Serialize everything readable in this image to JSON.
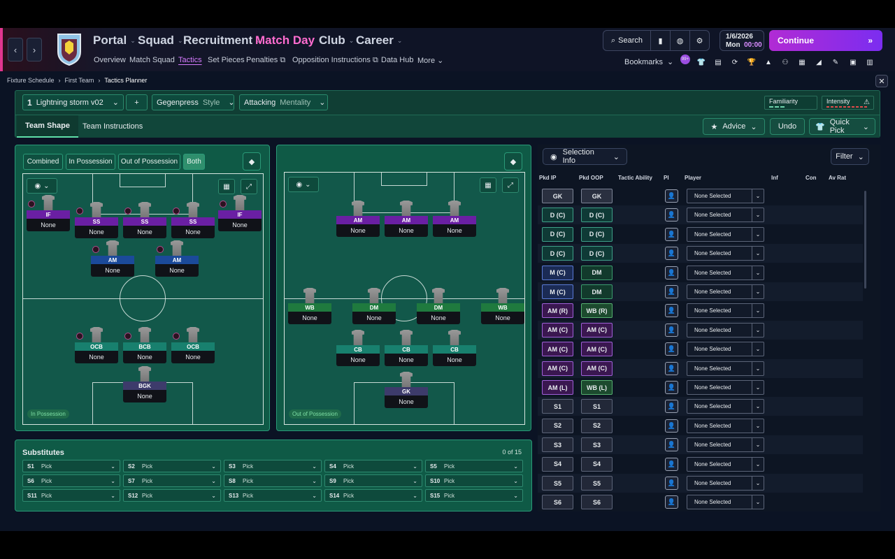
{
  "header": {
    "main_nav": [
      "Portal",
      "Squad",
      "Recruitment",
      "Match Day",
      "Club",
      "Career"
    ],
    "active_main": "Match Day",
    "sub_nav": [
      "Overview",
      "Match Squad",
      "Tactics",
      "Set Pieces",
      "Penalties",
      "Opposition Instructions",
      "Data Hub",
      "More"
    ],
    "active_sub": "Tactics",
    "search_label": "Search",
    "date": "1/6/2026",
    "day": "Mon",
    "time": "00:00",
    "continue_label": "Continue",
    "bookmarks_label": "Bookmarks",
    "bookmark_badge": "99+"
  },
  "breadcrumb": [
    "Fixture Schedule",
    "First Team",
    "Tactics Planner"
  ],
  "tactic": {
    "slot": "1",
    "name": "Lightning storm v02",
    "add_label": "+",
    "style_value": "Gegenpress",
    "style_label": "Style",
    "mentality_value": "Attacking",
    "mentality_label": "Mentality",
    "familiarity_label": "Familiarity",
    "intensity_label": "Intensity"
  },
  "tabs": [
    "Team Shape",
    "Team Instructions"
  ],
  "active_tab": "Team Shape",
  "actions": {
    "advice": "Advice",
    "undo": "Undo",
    "quick_pick": "Quick Pick"
  },
  "view_toggle": [
    "Combined",
    "In Possession",
    "Out of Possession",
    "Both"
  ],
  "active_view": "Both",
  "in_possession": {
    "tag": "In Possession",
    "players": [
      {
        "role": "IF",
        "name": "None",
        "color": "purple"
      },
      {
        "role": "SS",
        "name": "None",
        "color": "purple"
      },
      {
        "role": "SS",
        "name": "None",
        "color": "purple"
      },
      {
        "role": "SS",
        "name": "None",
        "color": "purple"
      },
      {
        "role": "IF",
        "name": "None",
        "color": "purple"
      },
      {
        "role": "AM",
        "name": "None",
        "color": "blue"
      },
      {
        "role": "AM",
        "name": "None",
        "color": "blue"
      },
      {
        "role": "OCB",
        "name": "None",
        "color": "teal"
      },
      {
        "role": "BCB",
        "name": "None",
        "color": "teal"
      },
      {
        "role": "OCB",
        "name": "None",
        "color": "teal"
      },
      {
        "role": "BGK",
        "name": "None",
        "color": "gk"
      }
    ]
  },
  "out_of_possession": {
    "tag": "Out of Possession",
    "players": [
      {
        "role": "AM",
        "name": "None",
        "color": "purple"
      },
      {
        "role": "AM",
        "name": "None",
        "color": "purple"
      },
      {
        "role": "AM",
        "name": "None",
        "color": "purple"
      },
      {
        "role": "WB",
        "name": "None",
        "color": "green"
      },
      {
        "role": "DM",
        "name": "None",
        "color": "green"
      },
      {
        "role": "DM",
        "name": "None",
        "color": "green"
      },
      {
        "role": "WB",
        "name": "None",
        "color": "green"
      },
      {
        "role": "CB",
        "name": "None",
        "color": "teal"
      },
      {
        "role": "CB",
        "name": "None",
        "color": "teal"
      },
      {
        "role": "CB",
        "name": "None",
        "color": "teal"
      },
      {
        "role": "GK",
        "name": "None",
        "color": "gk"
      }
    ]
  },
  "substitutes": {
    "title": "Substitutes",
    "count": "0 of 15",
    "slots": [
      {
        "id": "S1",
        "value": "Pick"
      },
      {
        "id": "S2",
        "value": "Pick"
      },
      {
        "id": "S3",
        "value": "Pick"
      },
      {
        "id": "S4",
        "value": "Pick"
      },
      {
        "id": "S5",
        "value": "Pick"
      },
      {
        "id": "S6",
        "value": "Pick"
      },
      {
        "id": "S7",
        "value": "Pick"
      },
      {
        "id": "S8",
        "value": "Pick"
      },
      {
        "id": "S9",
        "value": "Pick"
      },
      {
        "id": "S10",
        "value": "Pick"
      },
      {
        "id": "S11",
        "value": "Pick"
      },
      {
        "id": "S12",
        "value": "Pick"
      },
      {
        "id": "S13",
        "value": "Pick"
      },
      {
        "id": "S14",
        "value": "Pick"
      },
      {
        "id": "S15",
        "value": "Pick"
      }
    ]
  },
  "selection": {
    "info_label": "Selection Info",
    "filter_label": "Filter",
    "columns": [
      "Pkd IP",
      "Pkd OOP",
      "Tactic Ability",
      "PI",
      "Player",
      "Inf",
      "Con",
      "Av Rat"
    ],
    "rows": [
      {
        "ip": "GK",
        "ip_c": "gk",
        "oop": "GK",
        "oop_c": "gk",
        "player": "None Selected"
      },
      {
        "ip": "D (C)",
        "ip_c": "d",
        "oop": "D (C)",
        "oop_c": "d",
        "player": "None Selected"
      },
      {
        "ip": "D (C)",
        "ip_c": "d",
        "oop": "D (C)",
        "oop_c": "d",
        "player": "None Selected"
      },
      {
        "ip": "D (C)",
        "ip_c": "d",
        "oop": "D (C)",
        "oop_c": "d",
        "player": "None Selected"
      },
      {
        "ip": "M (C)",
        "ip_c": "m",
        "oop": "DM",
        "oop_c": "dm",
        "player": "None Selected"
      },
      {
        "ip": "M (C)",
        "ip_c": "m",
        "oop": "DM",
        "oop_c": "dm",
        "player": "None Selected"
      },
      {
        "ip": "AM (R)",
        "ip_c": "am",
        "oop": "WB (R)",
        "oop_c": "wb",
        "player": "None Selected"
      },
      {
        "ip": "AM (C)",
        "ip_c": "am",
        "oop": "AM (C)",
        "oop_c": "am",
        "player": "None Selected"
      },
      {
        "ip": "AM (C)",
        "ip_c": "am",
        "oop": "AM (C)",
        "oop_c": "am",
        "player": "None Selected"
      },
      {
        "ip": "AM (C)",
        "ip_c": "am",
        "oop": "AM (C)",
        "oop_c": "am",
        "player": "None Selected"
      },
      {
        "ip": "AM (L)",
        "ip_c": "am",
        "oop": "WB (L)",
        "oop_c": "wb",
        "player": "None Selected"
      },
      {
        "ip": "S1",
        "ip_c": "s",
        "oop": "S1",
        "oop_c": "s",
        "player": "None Selected"
      },
      {
        "ip": "S2",
        "ip_c": "s",
        "oop": "S2",
        "oop_c": "s",
        "player": "None Selected"
      },
      {
        "ip": "S3",
        "ip_c": "s",
        "oop": "S3",
        "oop_c": "s",
        "player": "None Selected"
      },
      {
        "ip": "S4",
        "ip_c": "s",
        "oop": "S4",
        "oop_c": "s",
        "player": "None Selected"
      },
      {
        "ip": "S5",
        "ip_c": "s",
        "oop": "S5",
        "oop_c": "s",
        "player": "None Selected"
      },
      {
        "ip": "S6",
        "ip_c": "s",
        "oop": "S6",
        "oop_c": "s",
        "player": "None Selected"
      }
    ]
  },
  "colors": {
    "accent": "#d77bff",
    "pitch": "#12584a",
    "panel": "#0f5a46",
    "continue": "#b12bd4"
  }
}
